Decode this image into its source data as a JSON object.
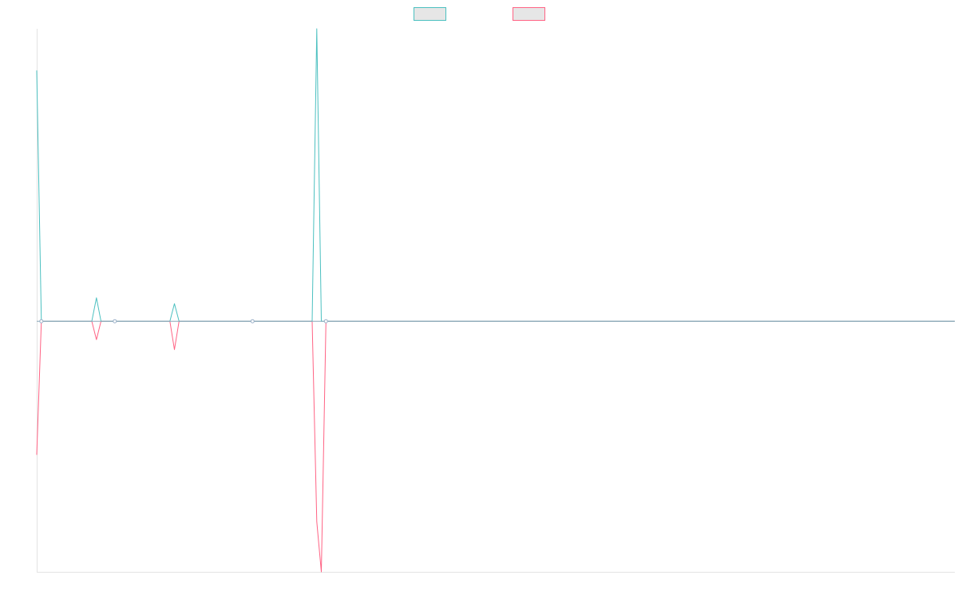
{
  "chart_data": {
    "type": "line",
    "title": "",
    "xlabel": "",
    "ylabel": "",
    "x": [
      0,
      1,
      12,
      13,
      14,
      17,
      29,
      30,
      31,
      47,
      60,
      61,
      62,
      63,
      200
    ],
    "ylim": [
      -3,
      3.5
    ],
    "xlim": [
      0,
      200
    ],
    "grid": false,
    "legend": {
      "position": "top",
      "entries": 2
    },
    "series": [
      {
        "color": "#4bc0c0",
        "values": [
          3,
          0,
          0,
          0.28,
          0,
          0,
          0,
          0.21,
          0,
          0,
          0,
          3.5,
          0,
          0,
          0
        ]
      },
      {
        "color": "#ff6384",
        "values": [
          -1.6,
          0,
          0,
          -0.22,
          0,
          0,
          0,
          -0.34,
          0,
          0,
          0,
          -2.4,
          -3,
          0,
          0
        ]
      }
    ],
    "markers": {
      "color": "#9ab0c8",
      "points": [
        [
          1,
          0
        ],
        [
          17,
          0
        ],
        [
          47,
          0
        ],
        [
          63,
          0
        ]
      ]
    }
  }
}
